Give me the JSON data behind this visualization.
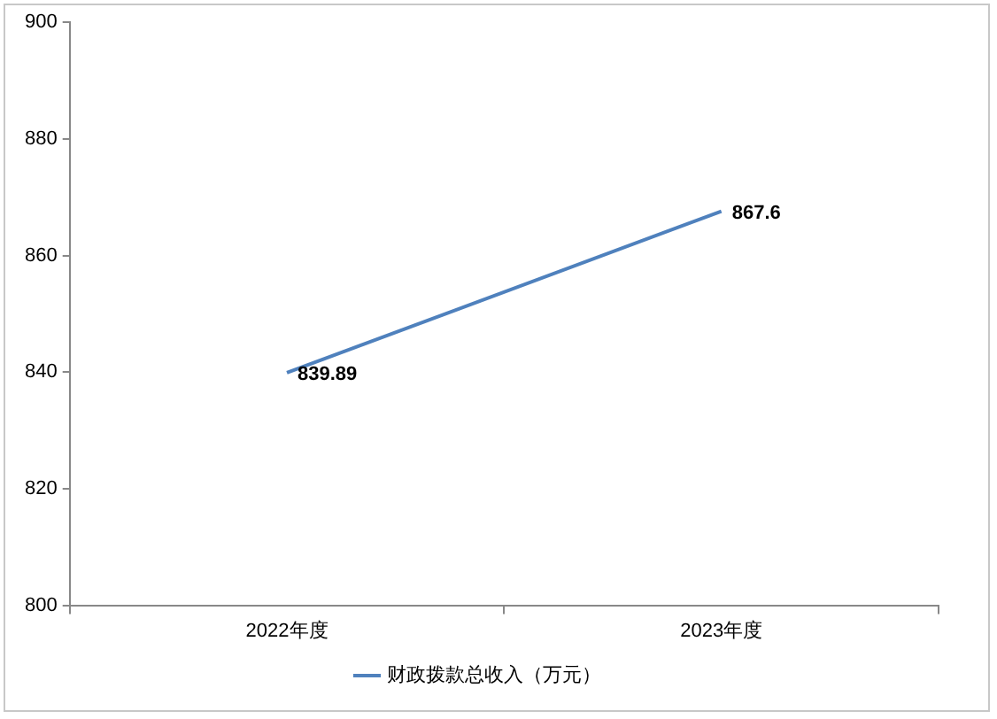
{
  "chart_data": {
    "type": "line",
    "categories": [
      "2022年度",
      "2023年度"
    ],
    "series": [
      {
        "name": "财政拨款总收入（万元）",
        "color": "#4f81bd",
        "values": [
          839.89,
          867.6
        ]
      }
    ],
    "ylim": [
      800,
      900
    ],
    "yticks": [
      800,
      820,
      840,
      860,
      880,
      900
    ],
    "grid": false,
    "legend": "bottom",
    "marker": "none",
    "line_style": "solid",
    "data_labels": true
  }
}
